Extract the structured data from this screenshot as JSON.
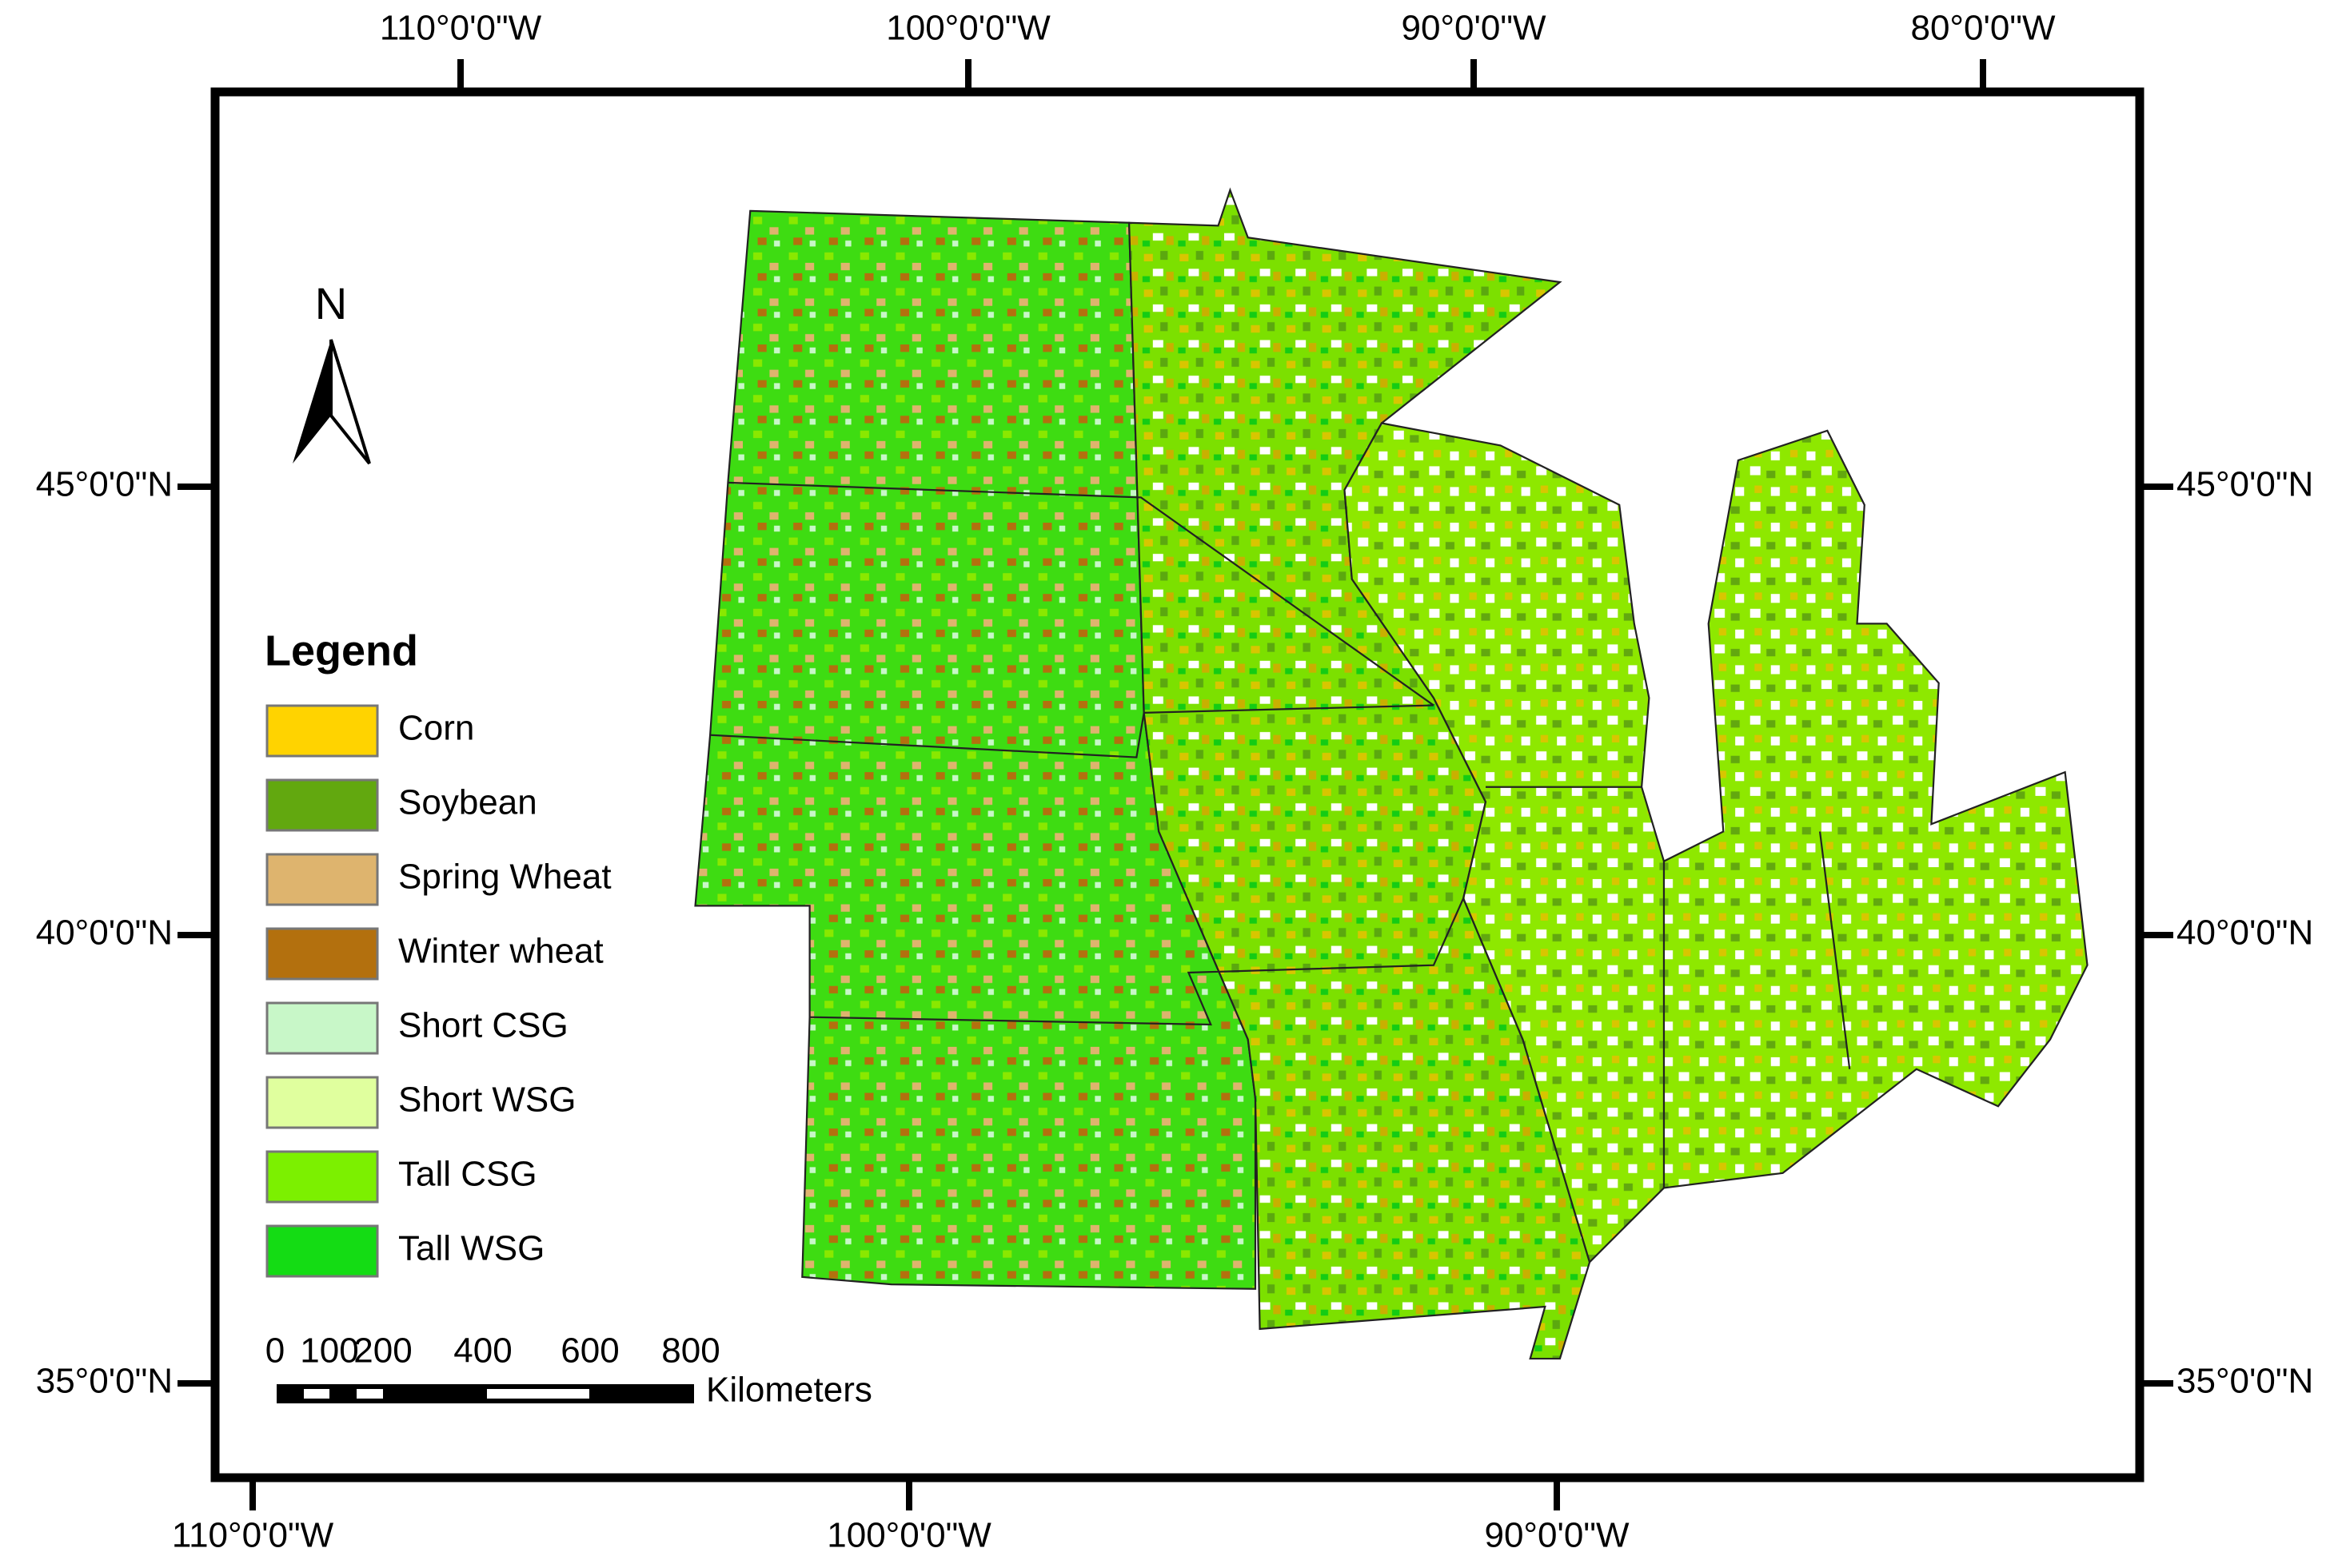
{
  "map": {
    "graticule": {
      "top": [
        "110°0'0\"W",
        "100°0'0\"W",
        "90°0'0\"W",
        "80°0'0\"W"
      ],
      "bottom": [
        "110°0'0\"W",
        "100°0'0\"W",
        "90°0'0\"W"
      ],
      "left": [
        "45°0'0\"N",
        "40°0'0\"N",
        "35°0'0\"N"
      ],
      "right": [
        "45°0'0\"N",
        "40°0'0\"N",
        "35°0'0\"N"
      ]
    },
    "north_arrow": "N",
    "legend": {
      "title": "Legend",
      "items": [
        {
          "label": "Corn",
          "color": "#ffd300"
        },
        {
          "label": "Soybean",
          "color": "#62a80f"
        },
        {
          "label": "Spring Wheat",
          "color": "#deb46e"
        },
        {
          "label": "Winter wheat",
          "color": "#b3700e"
        },
        {
          "label": "Short CSG",
          "color": "#c8f7c8"
        },
        {
          "label": "Short WSG",
          "color": "#e0ff9e"
        },
        {
          "label": "Tall CSG",
          "color": "#7cf000"
        },
        {
          "label": "Tall WSG",
          "color": "#14dc14"
        }
      ]
    },
    "scale_bar": {
      "labels": [
        "0",
        "100",
        "200",
        "400",
        "600",
        "800"
      ],
      "unit": "Kilometers"
    }
  }
}
